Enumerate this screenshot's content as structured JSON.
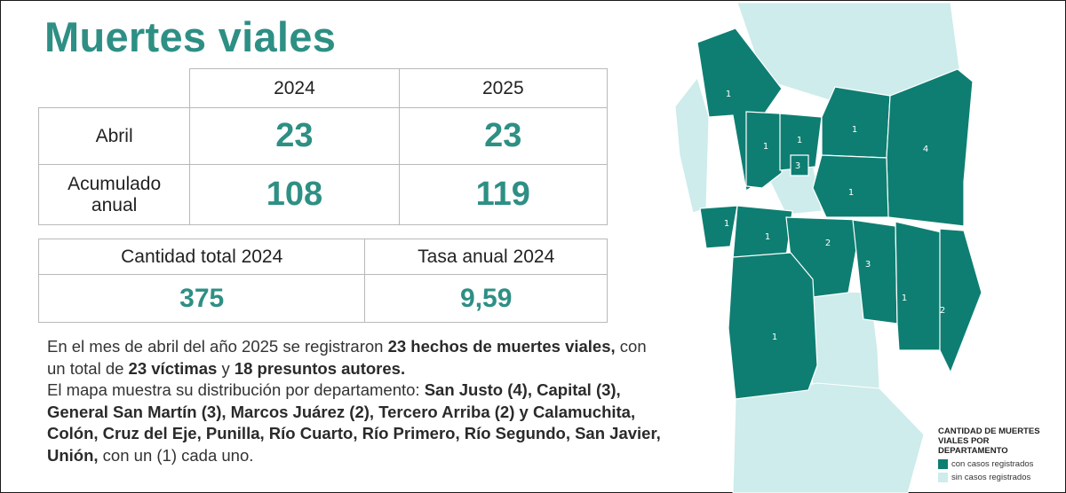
{
  "title": "Muertes viales",
  "table1": {
    "col_headers": [
      "2024",
      "2025"
    ],
    "rows": [
      {
        "label_lines": [
          "Abril"
        ],
        "values": [
          "23",
          "23"
        ]
      },
      {
        "label_lines": [
          "Acumulado",
          "anual"
        ],
        "values": [
          "108",
          "119"
        ]
      }
    ]
  },
  "table2": {
    "headers": [
      "Cantidad total 2024",
      "Tasa anual 2024"
    ],
    "values": [
      "375",
      "9,59"
    ]
  },
  "paragraph": {
    "p1_a": "En el mes de abril del año 2025 se registraron ",
    "p1_b": "23 hechos de muertes viales,",
    "p1_c": " con un total de ",
    "p1_d": "23 víctimas",
    "p1_e": " y ",
    "p1_f": "18 presuntos autores.",
    "p2_a": "El mapa muestra su distribución por departamento: ",
    "p2_b": "San Justo (4), Capital (3), General San Martín (3), Marcos Juárez (2), Tercero Arriba (2) y  Calamuchita, Colón, Cruz del Eje, Punilla, Río Cuarto, Río Primero, Río Segundo, San Javier, Unión,",
    "p2_c": " con un (1) cada uno."
  },
  "map": {
    "colors": {
      "with_cases": "#0e7e72",
      "without_cases": "#cdeceb",
      "border": "#ffffff",
      "label": "#ffffff"
    },
    "department_counts": [
      "1",
      "1",
      "1",
      "3",
      "1",
      "4",
      "1",
      "1",
      "1",
      "2",
      "3",
      "1",
      "2",
      "1"
    ]
  },
  "legend": {
    "title_lines": [
      "CANTIDAD DE MUERTES",
      "VIALES POR",
      "DEPARTAMENTO"
    ],
    "items": [
      {
        "label": "con casos registrados",
        "color": "#0e7e72"
      },
      {
        "label": "sin casos registrados",
        "color": "#cdeceb"
      }
    ]
  }
}
